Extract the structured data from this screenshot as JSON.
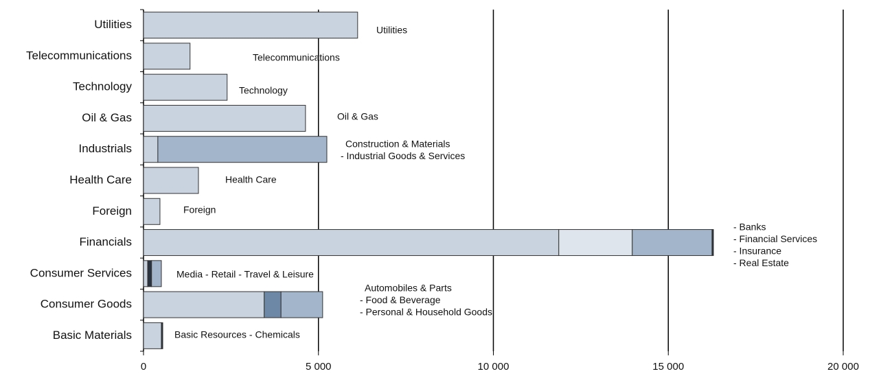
{
  "chart_data": {
    "type": "stacked-bar-horizontal",
    "categories": [
      "Utilities",
      "Telecommunications",
      "Technology",
      "Oil & Gas",
      "Industrials",
      "Health Care",
      "Foreign",
      "Financials",
      "Consumer Services",
      "Consumer Goods",
      "Basic Materials"
    ],
    "segments": [
      [
        6120
      ],
      [
        1330
      ],
      [
        2390
      ],
      [
        4630
      ],
      [
        410,
        4830
      ],
      [
        1570
      ],
      [
        470
      ],
      [
        11870,
        2100,
        2280,
        40
      ],
      [
        120,
        110,
        280
      ],
      [
        3450,
        480,
        1190
      ],
      [
        510,
        40
      ]
    ],
    "segment_colors": [
      [
        "#c8d3df"
      ],
      [
        "#c8d3df"
      ],
      [
        "#c8d3df"
      ],
      [
        "#c8d3df"
      ],
      [
        "#c8d3df",
        "#a3b5ca"
      ],
      [
        "#c8d3df"
      ],
      [
        "#c8d3df"
      ],
      [
        "#c8d3df",
        "#dfe5ec",
        "#a3b5ca",
        "#2a3340"
      ],
      [
        "#c8d3df",
        "#2a3340",
        "#a3b5ca"
      ],
      [
        "#c8d3df",
        "#6d87a6",
        "#a3b5ca"
      ],
      [
        "#c8d3df",
        "#2a3340"
      ]
    ],
    "annotations": [
      [
        "Utilities"
      ],
      [
        "Telecommunications"
      ],
      [
        "Technology"
      ],
      [
        "Oil & Gas"
      ],
      [
        "Construction & Materials",
        "- Industrial Goods & Services"
      ],
      [
        "Health Care"
      ],
      [
        "Foreign"
      ],
      [
        "- Banks",
        "- Financial Services",
        "- Insurance",
        "- Real Estate"
      ],
      [
        "Media - Retail - Travel & Leisure"
      ],
      [
        "Automobiles & Parts",
        "- Food & Beverage",
        "- Personal & Household Goods"
      ],
      [
        "Basic Resources - Chemicals"
      ]
    ],
    "xlim": [
      0,
      20000
    ],
    "xticks": [
      0,
      {
        "value": 5000,
        "label": "5 000"
      },
      {
        "value": 10000,
        "label": "10 000"
      },
      {
        "value": 15000,
        "label": "15 000"
      },
      {
        "value": 20000,
        "label": "20 000"
      }
    ],
    "grid": true
  }
}
